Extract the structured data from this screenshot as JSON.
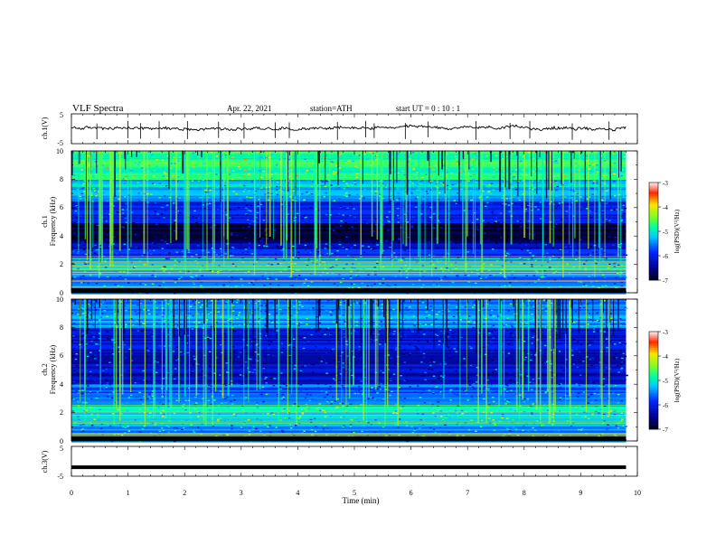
{
  "header": {
    "title": "VLF  Spectra",
    "date": "Apr. 22, 2021",
    "station": "station=ATH",
    "start": "start  UT  =    0  : 10 : 1"
  },
  "chart_data": [
    {
      "type": "line",
      "panel": "ch1-waveform",
      "ylabel": "ch.1(V)",
      "ylim": [
        -5,
        5
      ],
      "yticks": [
        "5",
        "-5"
      ],
      "xlim": [
        0,
        10
      ],
      "trace_color": "#000000",
      "baseline": 0.2,
      "spike_times": [
        0.45,
        1.0,
        1.22,
        1.55,
        2.05,
        2.6,
        3.05,
        3.6,
        3.85,
        4.7,
        5.2,
        5.35,
        5.9,
        6.3,
        7.15,
        7.75,
        8.1,
        8.85,
        9.5
      ]
    },
    {
      "type": "heatmap",
      "panel": "ch1-spectrogram",
      "ylabel": "ch.1\nFrequency  (kHz)",
      "xlim": [
        0,
        10
      ],
      "ylim": [
        0,
        10
      ],
      "yticks": [
        "0",
        "2",
        "4",
        "6",
        "8",
        "10"
      ],
      "data_end_min": 9.8,
      "colorbar": {
        "label": "log(PSD)(V²/Hz)",
        "range": [
          -7,
          -3
        ],
        "ticks": [
          "-3",
          "-4",
          "-5",
          "-6",
          "-7"
        ]
      },
      "band_profile": [
        {
          "freq_khz": [
            8.0,
            10.0
          ],
          "log_psd": -4.7
        },
        {
          "freq_khz": [
            6.5,
            8.0
          ],
          "log_psd": -5.2
        },
        {
          "freq_khz": [
            5.0,
            6.5
          ],
          "log_psd": -6.0
        },
        {
          "freq_khz": [
            3.5,
            5.0
          ],
          "log_psd": -6.8
        },
        {
          "freq_khz": [
            2.5,
            3.5
          ],
          "log_psd": -6.0
        },
        {
          "freq_khz": [
            1.5,
            2.5
          ],
          "log_psd": -5.3
        },
        {
          "freq_khz": [
            0.0,
            1.5
          ],
          "log_psd": -5.6
        }
      ]
    },
    {
      "type": "heatmap",
      "panel": "ch2-spectrogram",
      "ylabel": "ch.2\nFrequency  (kHz)",
      "xlim": [
        0,
        10
      ],
      "ylim": [
        0,
        10
      ],
      "yticks": [
        "0",
        "2",
        "4",
        "6",
        "8",
        "10"
      ],
      "data_end_min": 9.8,
      "colorbar": {
        "label": "log(PSD)(V²/Hz)",
        "range": [
          -7,
          -3
        ],
        "ticks": [
          "-3",
          "-4",
          "-5",
          "-6",
          "-7"
        ]
      },
      "band_profile": [
        {
          "freq_khz": [
            8.0,
            10.0
          ],
          "log_psd": -5.4
        },
        {
          "freq_khz": [
            6.0,
            8.0
          ],
          "log_psd": -6.1
        },
        {
          "freq_khz": [
            4.0,
            6.0
          ],
          "log_psd": -6.2
        },
        {
          "freq_khz": [
            2.5,
            4.0
          ],
          "log_psd": -5.6
        },
        {
          "freq_khz": [
            1.5,
            2.5
          ],
          "log_psd": -5.0
        },
        {
          "freq_khz": [
            0.0,
            1.5
          ],
          "log_psd": -5.4
        }
      ]
    },
    {
      "type": "line",
      "panel": "ch3-waveform",
      "ylabel": "ch.3(V)",
      "ylim": [
        -5,
        5
      ],
      "yticks": [
        "5",
        "-5"
      ],
      "xlim": [
        0,
        10
      ],
      "trace_color": "#000000",
      "baseline": -2.0
    }
  ],
  "x_axis": {
    "label": "Time  (min)",
    "ticks": [
      "0",
      "1",
      "2",
      "3",
      "4",
      "5",
      "6",
      "7",
      "8",
      "9",
      "10"
    ]
  }
}
